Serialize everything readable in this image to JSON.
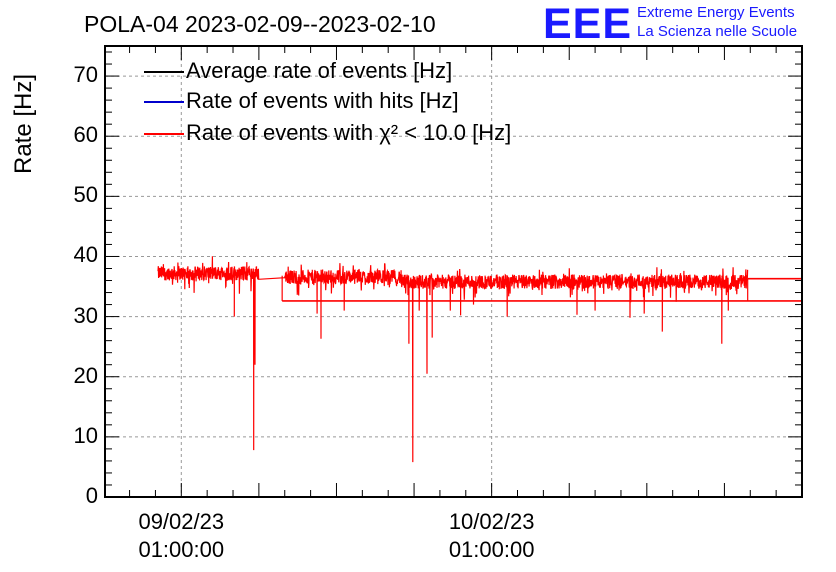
{
  "chart_data": {
    "type": "line",
    "title": "POLA-04 2023-02-09--2023-02-10",
    "ylabel": "Rate [Hz]",
    "xlabel": "",
    "ylim": [
      0,
      75
    ],
    "yticks": [
      0,
      10,
      20,
      30,
      40,
      50,
      60,
      70
    ],
    "xticks": [
      {
        "date": "09/02/23",
        "time": "01:00:00",
        "hour": 0
      },
      {
        "date": "10/02/23",
        "time": "01:00:00",
        "hour": 24
      }
    ],
    "xlim_hours": [
      -5.9,
      48.0
    ],
    "grid": true,
    "legend_position": "top-left",
    "series": [
      {
        "name": "Average rate of events [Hz]",
        "color": "#000000"
      },
      {
        "name": "Rate of events with hits [Hz]",
        "color": "#0000cc"
      },
      {
        "name": "Rate of events with χ² < 10.0 [Hz]",
        "color": "#ff0000",
        "segments": [
          {
            "x_hours": [
              -1.8,
              6.0
            ],
            "y_mean": 37.2
          },
          {
            "x_hours": [
              8.0,
              17.0
            ],
            "y_mean": 36.6
          },
          {
            "x_hours": [
              17.0,
              43.8
            ],
            "y_mean": 35.8
          }
        ],
        "dips": [
          {
            "hour": 1.0,
            "y": 35.0
          },
          {
            "hour": 4.1,
            "y": 30.0
          },
          {
            "hour": 5.6,
            "y": 7.8
          },
          {
            "hour": 5.7,
            "y": 22.0
          },
          {
            "hour": 10.5,
            "y": 30.5
          },
          {
            "hour": 10.8,
            "y": 26.3
          },
          {
            "hour": 12.6,
            "y": 31.0
          },
          {
            "hour": 17.6,
            "y": 25.5
          },
          {
            "hour": 17.9,
            "y": 5.8
          },
          {
            "hour": 18.4,
            "y": 31.0
          },
          {
            "hour": 19.0,
            "y": 20.5
          },
          {
            "hour": 19.4,
            "y": 26.5
          },
          {
            "hour": 20.8,
            "y": 31.0
          },
          {
            "hour": 21.6,
            "y": 30.2
          },
          {
            "hour": 22.6,
            "y": 32.0
          },
          {
            "hour": 25.2,
            "y": 30.0
          },
          {
            "hour": 30.6,
            "y": 30.3
          },
          {
            "hour": 32.0,
            "y": 31.0
          },
          {
            "hour": 34.7,
            "y": 29.8
          },
          {
            "hour": 35.8,
            "y": 30.5
          },
          {
            "hour": 37.2,
            "y": 27.5
          },
          {
            "hour": 41.8,
            "y": 25.5
          },
          {
            "hour": 42.3,
            "y": 31.0
          }
        ],
        "flat_lines": [
          {
            "from_hour": 7.8,
            "to_hour": 48.0,
            "y": 32.6
          },
          {
            "from_hour": 43.8,
            "to_hour": 48.0,
            "y": 36.3
          }
        ]
      }
    ]
  },
  "logo": {
    "mark": "EEE",
    "line1": "Extreme Energy Events",
    "line2": "La Scienza nelle Scuole"
  }
}
